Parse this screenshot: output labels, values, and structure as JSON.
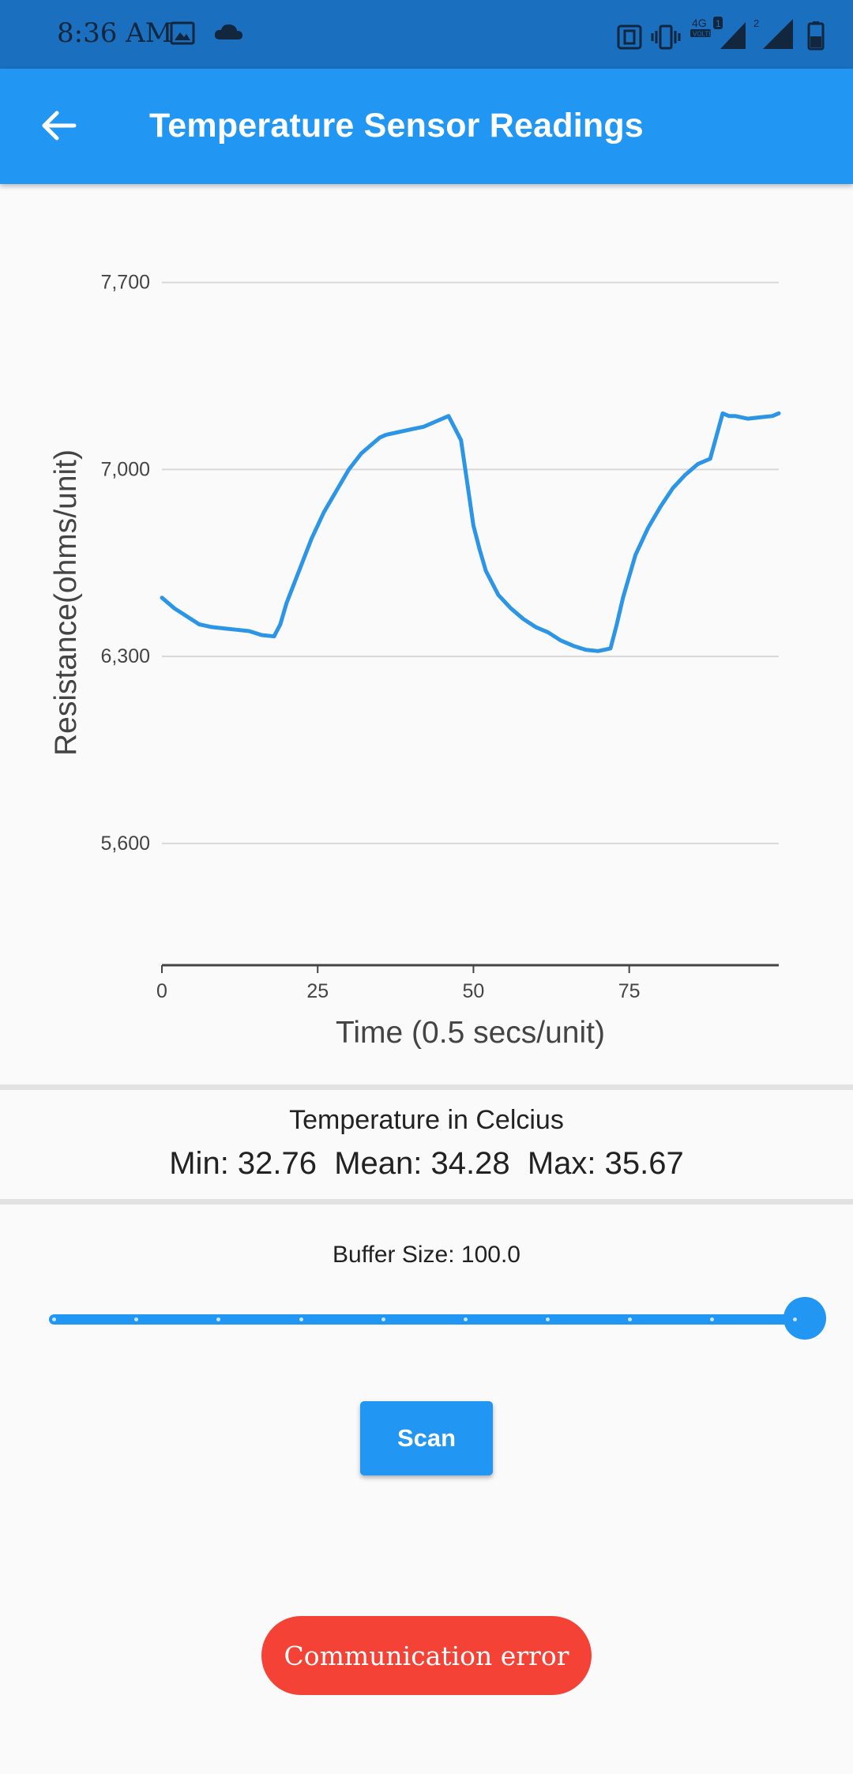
{
  "status_bar": {
    "time": "8:36 AM",
    "network_label": "4G",
    "volte_label": "VOLTE",
    "sim1_label": "1",
    "sim2_label": "2",
    "icons": [
      "image-icon",
      "cloud-icon",
      "nfc-icon",
      "vibrate-icon",
      "signal-icon",
      "battery-icon"
    ]
  },
  "app_bar": {
    "title": "Temperature Sensor Readings",
    "back_icon": "arrow-back-icon"
  },
  "colors": {
    "status_bar": "#1a6fbf",
    "app_bar": "#2196f3",
    "line": "#2d95e6",
    "error": "#f44336",
    "background": "#fafafa"
  },
  "chart_data": {
    "type": "line",
    "xlabel": "Time (0.5 secs/unit)",
    "ylabel": "Resistance(ohms/unit)",
    "xlim": [
      0,
      99
    ],
    "ylim": [
      5150,
      7900
    ],
    "xticks": [
      0,
      25,
      50,
      75
    ],
    "xtick_labels": [
      "0",
      "25",
      "50",
      "75"
    ],
    "yticks": [
      5600,
      6300,
      7000,
      7700
    ],
    "ytick_labels": [
      "5,600",
      "6,300",
      "7,000",
      "7,700"
    ],
    "grid": true,
    "series": [
      {
        "x": [
          0,
          2,
          4,
          6,
          8,
          10,
          12,
          14,
          16,
          18,
          19,
          20,
          21,
          22,
          24,
          26,
          28,
          30,
          32,
          34,
          35,
          36,
          38,
          40,
          42,
          44,
          46,
          48,
          49,
          50,
          51,
          52,
          54,
          56,
          58,
          60,
          62,
          64,
          66,
          68,
          70,
          72,
          73,
          74,
          75,
          76,
          78,
          80,
          82,
          84,
          86,
          88,
          90,
          91,
          92,
          94,
          96,
          98,
          99
        ],
        "y": [
          6520,
          6480,
          6450,
          6420,
          6410,
          6405,
          6400,
          6395,
          6380,
          6375,
          6420,
          6500,
          6560,
          6620,
          6740,
          6840,
          6920,
          7000,
          7060,
          7100,
          7120,
          7130,
          7140,
          7150,
          7160,
          7180,
          7200,
          7110,
          6950,
          6790,
          6700,
          6620,
          6530,
          6480,
          6440,
          6410,
          6390,
          6360,
          6340,
          6325,
          6320,
          6330,
          6420,
          6520,
          6600,
          6680,
          6780,
          6860,
          6930,
          6980,
          7020,
          7040,
          7210,
          7200,
          7200,
          7190,
          7195,
          7200,
          7210
        ]
      }
    ]
  },
  "temperature": {
    "title": "Temperature in Celcius",
    "stats": "Min: 32.76  Mean: 34.28  Max: 35.67"
  },
  "buffer": {
    "label": "Buffer Size: 100.0",
    "value": 100,
    "min": 0,
    "max": 100,
    "divisions": 9
  },
  "scan_button": {
    "label": "Scan"
  },
  "toast": {
    "message": "Communication error"
  }
}
